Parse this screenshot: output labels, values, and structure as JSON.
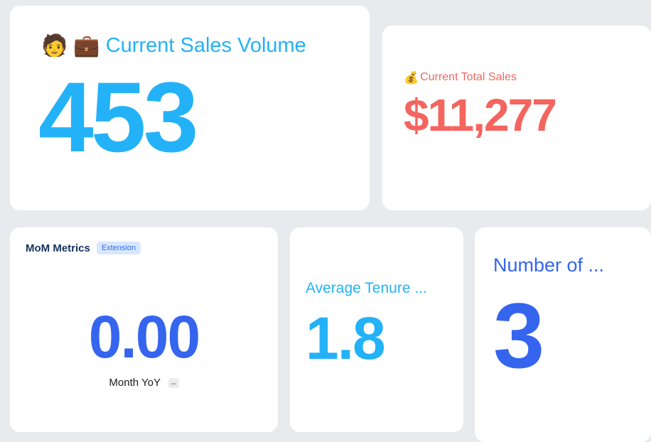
{
  "page": {
    "background": "#e9eaee"
  },
  "cards": {
    "sales_volume": {
      "person_icon": "🧑",
      "briefcase_icon": "💼",
      "title": "Current Sales Volume",
      "value": "453",
      "accent": "#23b2f8"
    },
    "total_sales": {
      "moneybag_icon": "💰",
      "title": "Current Total Sales",
      "value": "$11,277",
      "accent": "#f4655f"
    },
    "mom_metrics": {
      "title": "MoM Metrics",
      "badge": "Extension",
      "value": "0.00",
      "footer_label": "Month YoY",
      "footer_badge": "–",
      "accent": "#3565ef"
    },
    "average_tenure": {
      "title": "Average Tenure ...",
      "value": "1.8",
      "accent": "#23b2f8"
    },
    "number_of": {
      "title": "Number of ...",
      "value": "3",
      "accent": "#3565ef"
    }
  }
}
